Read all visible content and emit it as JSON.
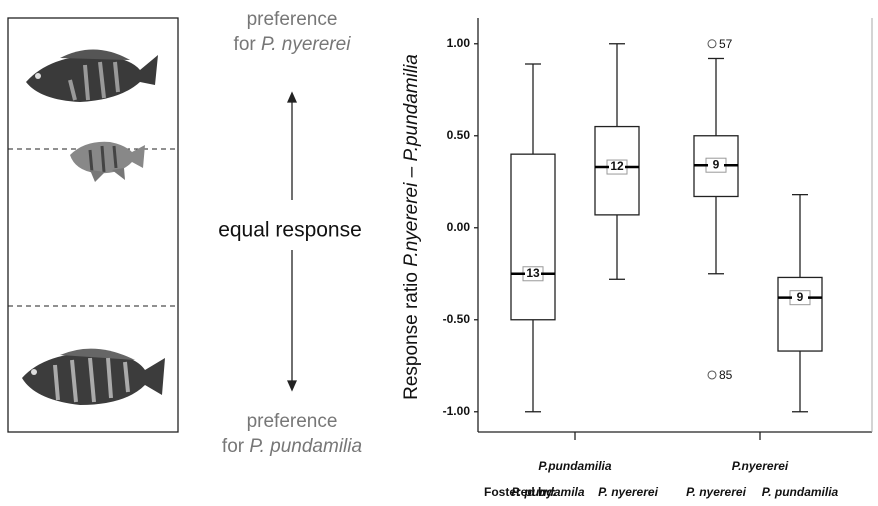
{
  "diagram": {
    "top_line1": "preference",
    "top_line2": "for ",
    "top_species": "P. nyererei",
    "middle": "equal response",
    "bottom_line1": "preference",
    "bottom_line2": "for ",
    "bottom_species": "P. pundamilia"
  },
  "chart_data": {
    "type": "box",
    "ylabel_plain": "Response ratio ",
    "ylabel_italic": "P.nyererei – P.pundamilia",
    "ylim": [
      -1.11,
      1.14
    ],
    "yticks": [
      {
        "value": -1,
        "label": "-1.00"
      },
      {
        "value": -0.5,
        "label": "-0.50"
      },
      {
        "value": 0,
        "label": "0.00"
      },
      {
        "value": 0.5,
        "label": "0.50"
      },
      {
        "value": 1,
        "label": "1.00"
      }
    ],
    "groups": [
      "P.pundamilia",
      "P.nyererei"
    ],
    "fostered_label": "Fostered by:",
    "categories": [
      "P. pundamila",
      "P. nyererei",
      "P. nyererei",
      "P. pundamilia"
    ],
    "boxes": [
      {
        "min": -1.0,
        "q1": -0.5,
        "median": -0.25,
        "q3": 0.4,
        "max": 0.89,
        "n": 13
      },
      {
        "min": -0.28,
        "q1": 0.07,
        "median": 0.33,
        "q3": 0.55,
        "max": 1.0,
        "n": 12
      },
      {
        "min": -0.25,
        "q1": 0.17,
        "median": 0.34,
        "q3": 0.5,
        "max": 0.92,
        "n": 9
      },
      {
        "min": -1.0,
        "q1": -0.67,
        "median": -0.38,
        "q3": -0.27,
        "max": 0.18,
        "n": 9
      }
    ],
    "outliers": [
      {
        "box": 2,
        "value": 1.0,
        "label": "57"
      },
      {
        "box": 2,
        "value": -0.8,
        "label": "85"
      }
    ]
  }
}
